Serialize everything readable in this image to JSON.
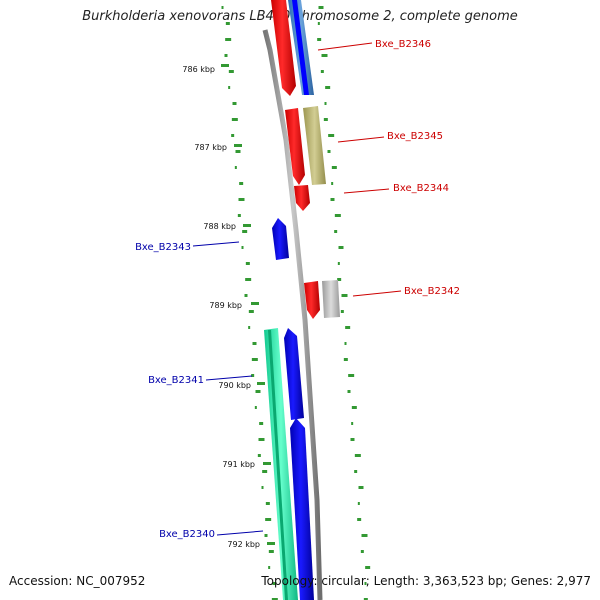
{
  "title": "Burkholderia xenovorans LB400 chromosome 2, complete genome",
  "accession_label": "Accession: NC_007952",
  "summary_label": "Topology: circular; Length: 3,363,523 bp; Genes: 2,977",
  "scale_labels": [
    "786 kbp",
    "787 kbp",
    "788 kbp",
    "789 kbp",
    "790 kbp",
    "791 kbp",
    "792 kbp"
  ],
  "genes_forward": [
    {
      "name": "Bxe_B2346",
      "color": "#cc0000"
    },
    {
      "name": "Bxe_B2345",
      "color": "#cc0000"
    },
    {
      "name": "Bxe_B2344",
      "color": "#cc0000"
    },
    {
      "name": "Bxe_B2342",
      "color": "#cc0000"
    }
  ],
  "genes_reverse": [
    {
      "name": "Bxe_B2343",
      "color": "#0000aa"
    },
    {
      "name": "Bxe_B2341",
      "color": "#0000aa"
    },
    {
      "name": "Bxe_B2340",
      "color": "#0000aa"
    }
  ],
  "colors": {
    "backbone": "#888888",
    "forward_cds": "#ff0000",
    "reverse_cds": "#0000ff",
    "tick": "#339933",
    "cog_blue": "#3a7fc8",
    "cog_olive": "#b6b06a",
    "cog_gray": "#b8b8b8",
    "cog_teal": "#22ddaa"
  }
}
